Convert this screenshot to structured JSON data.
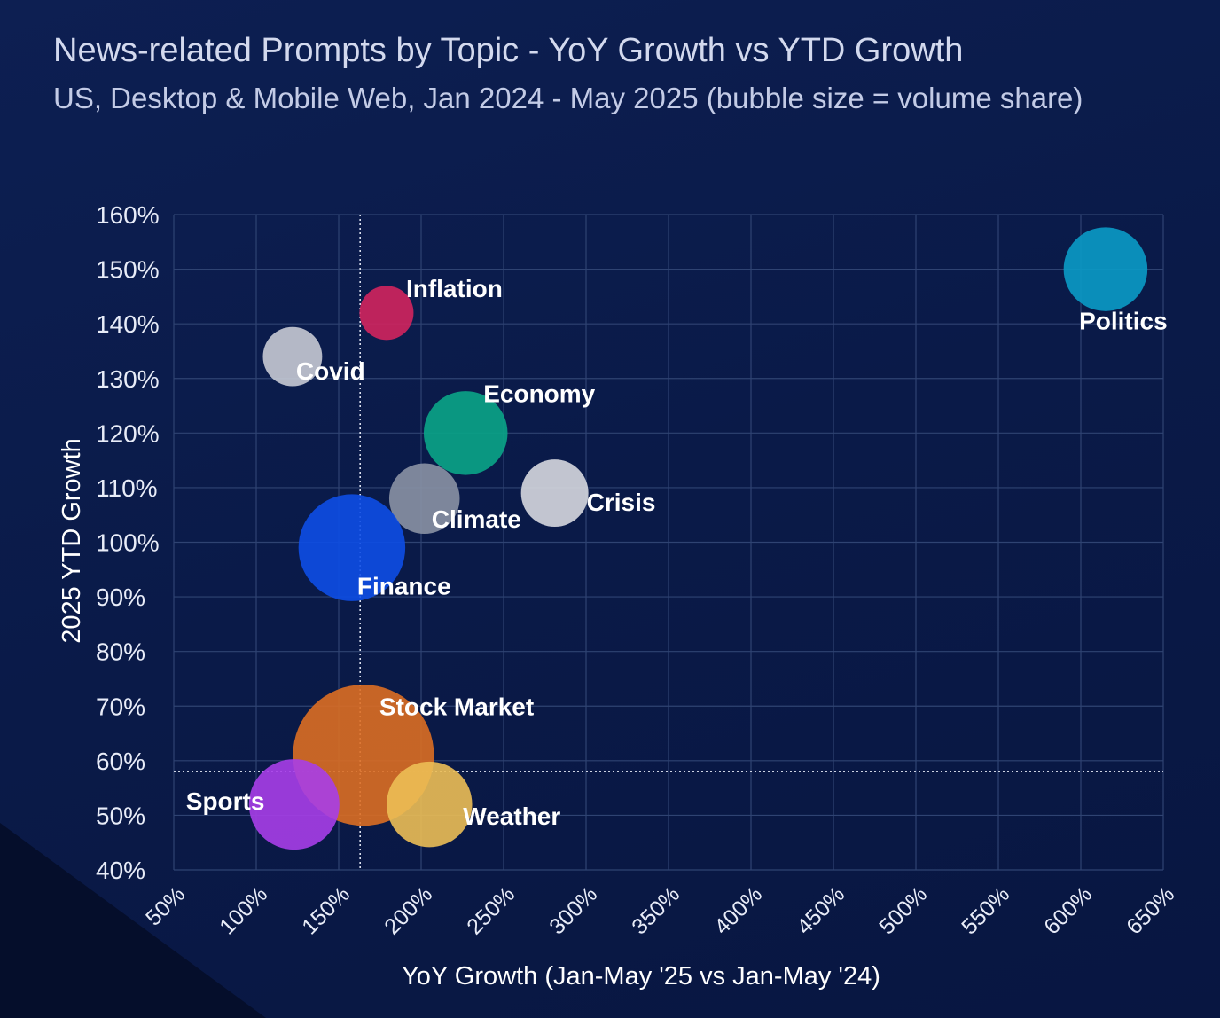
{
  "chart_data": {
    "type": "scatter",
    "title": "News-related Prompts by Topic - YoY Growth vs YTD Growth",
    "subtitle": "US, Desktop & Mobile Web, Jan 2024 - May 2025 (bubble size = volume share)",
    "xlabel": "YoY Growth (Jan-May '25 vs Jan-May '24)",
    "ylabel": "2025 YTD Growth",
    "xlim": [
      50,
      650
    ],
    "ylim": [
      40,
      160
    ],
    "xticks": [
      "50%",
      "100%",
      "150%",
      "200%",
      "250%",
      "300%",
      "350%",
      "400%",
      "450%",
      "500%",
      "550%",
      "600%",
      "650%"
    ],
    "yticks": [
      "40%",
      "50%",
      "60%",
      "70%",
      "80%",
      "90%",
      "100%",
      "110%",
      "120%",
      "130%",
      "140%",
      "150%",
      "160%"
    ],
    "reference_lines": {
      "x": 163,
      "y": 58
    },
    "grid": true,
    "points": [
      {
        "label": "Politics",
        "x": 615,
        "y": 150,
        "size": 2.4,
        "color": "#0a9bc6"
      },
      {
        "label": "Inflation",
        "x": 179,
        "y": 142,
        "size": 1.0,
        "color": "#d1255e"
      },
      {
        "label": "Covid",
        "x": 122,
        "y": 134,
        "size": 1.2,
        "color": "#c6cad4"
      },
      {
        "label": "Economy",
        "x": 227,
        "y": 120,
        "size": 2.4,
        "color": "#0aa587"
      },
      {
        "label": "Crisis",
        "x": 281,
        "y": 109,
        "size": 1.55,
        "color": "#d6d8df"
      },
      {
        "label": "Climate",
        "x": 202,
        "y": 108,
        "size": 1.7,
        "color": "#8a92a4"
      },
      {
        "label": "Finance",
        "x": 158,
        "y": 99,
        "size": 3.9,
        "color": "#0d4ee6"
      },
      {
        "label": "Stock Market",
        "x": 165,
        "y": 61,
        "size": 6.8,
        "color": "#db6e22"
      },
      {
        "label": "Weather",
        "x": 205,
        "y": 52,
        "size": 2.5,
        "color": "#ecbe55"
      },
      {
        "label": "Sports",
        "x": 123,
        "y": 52,
        "size": 2.8,
        "color": "#a73ee8"
      }
    ]
  }
}
